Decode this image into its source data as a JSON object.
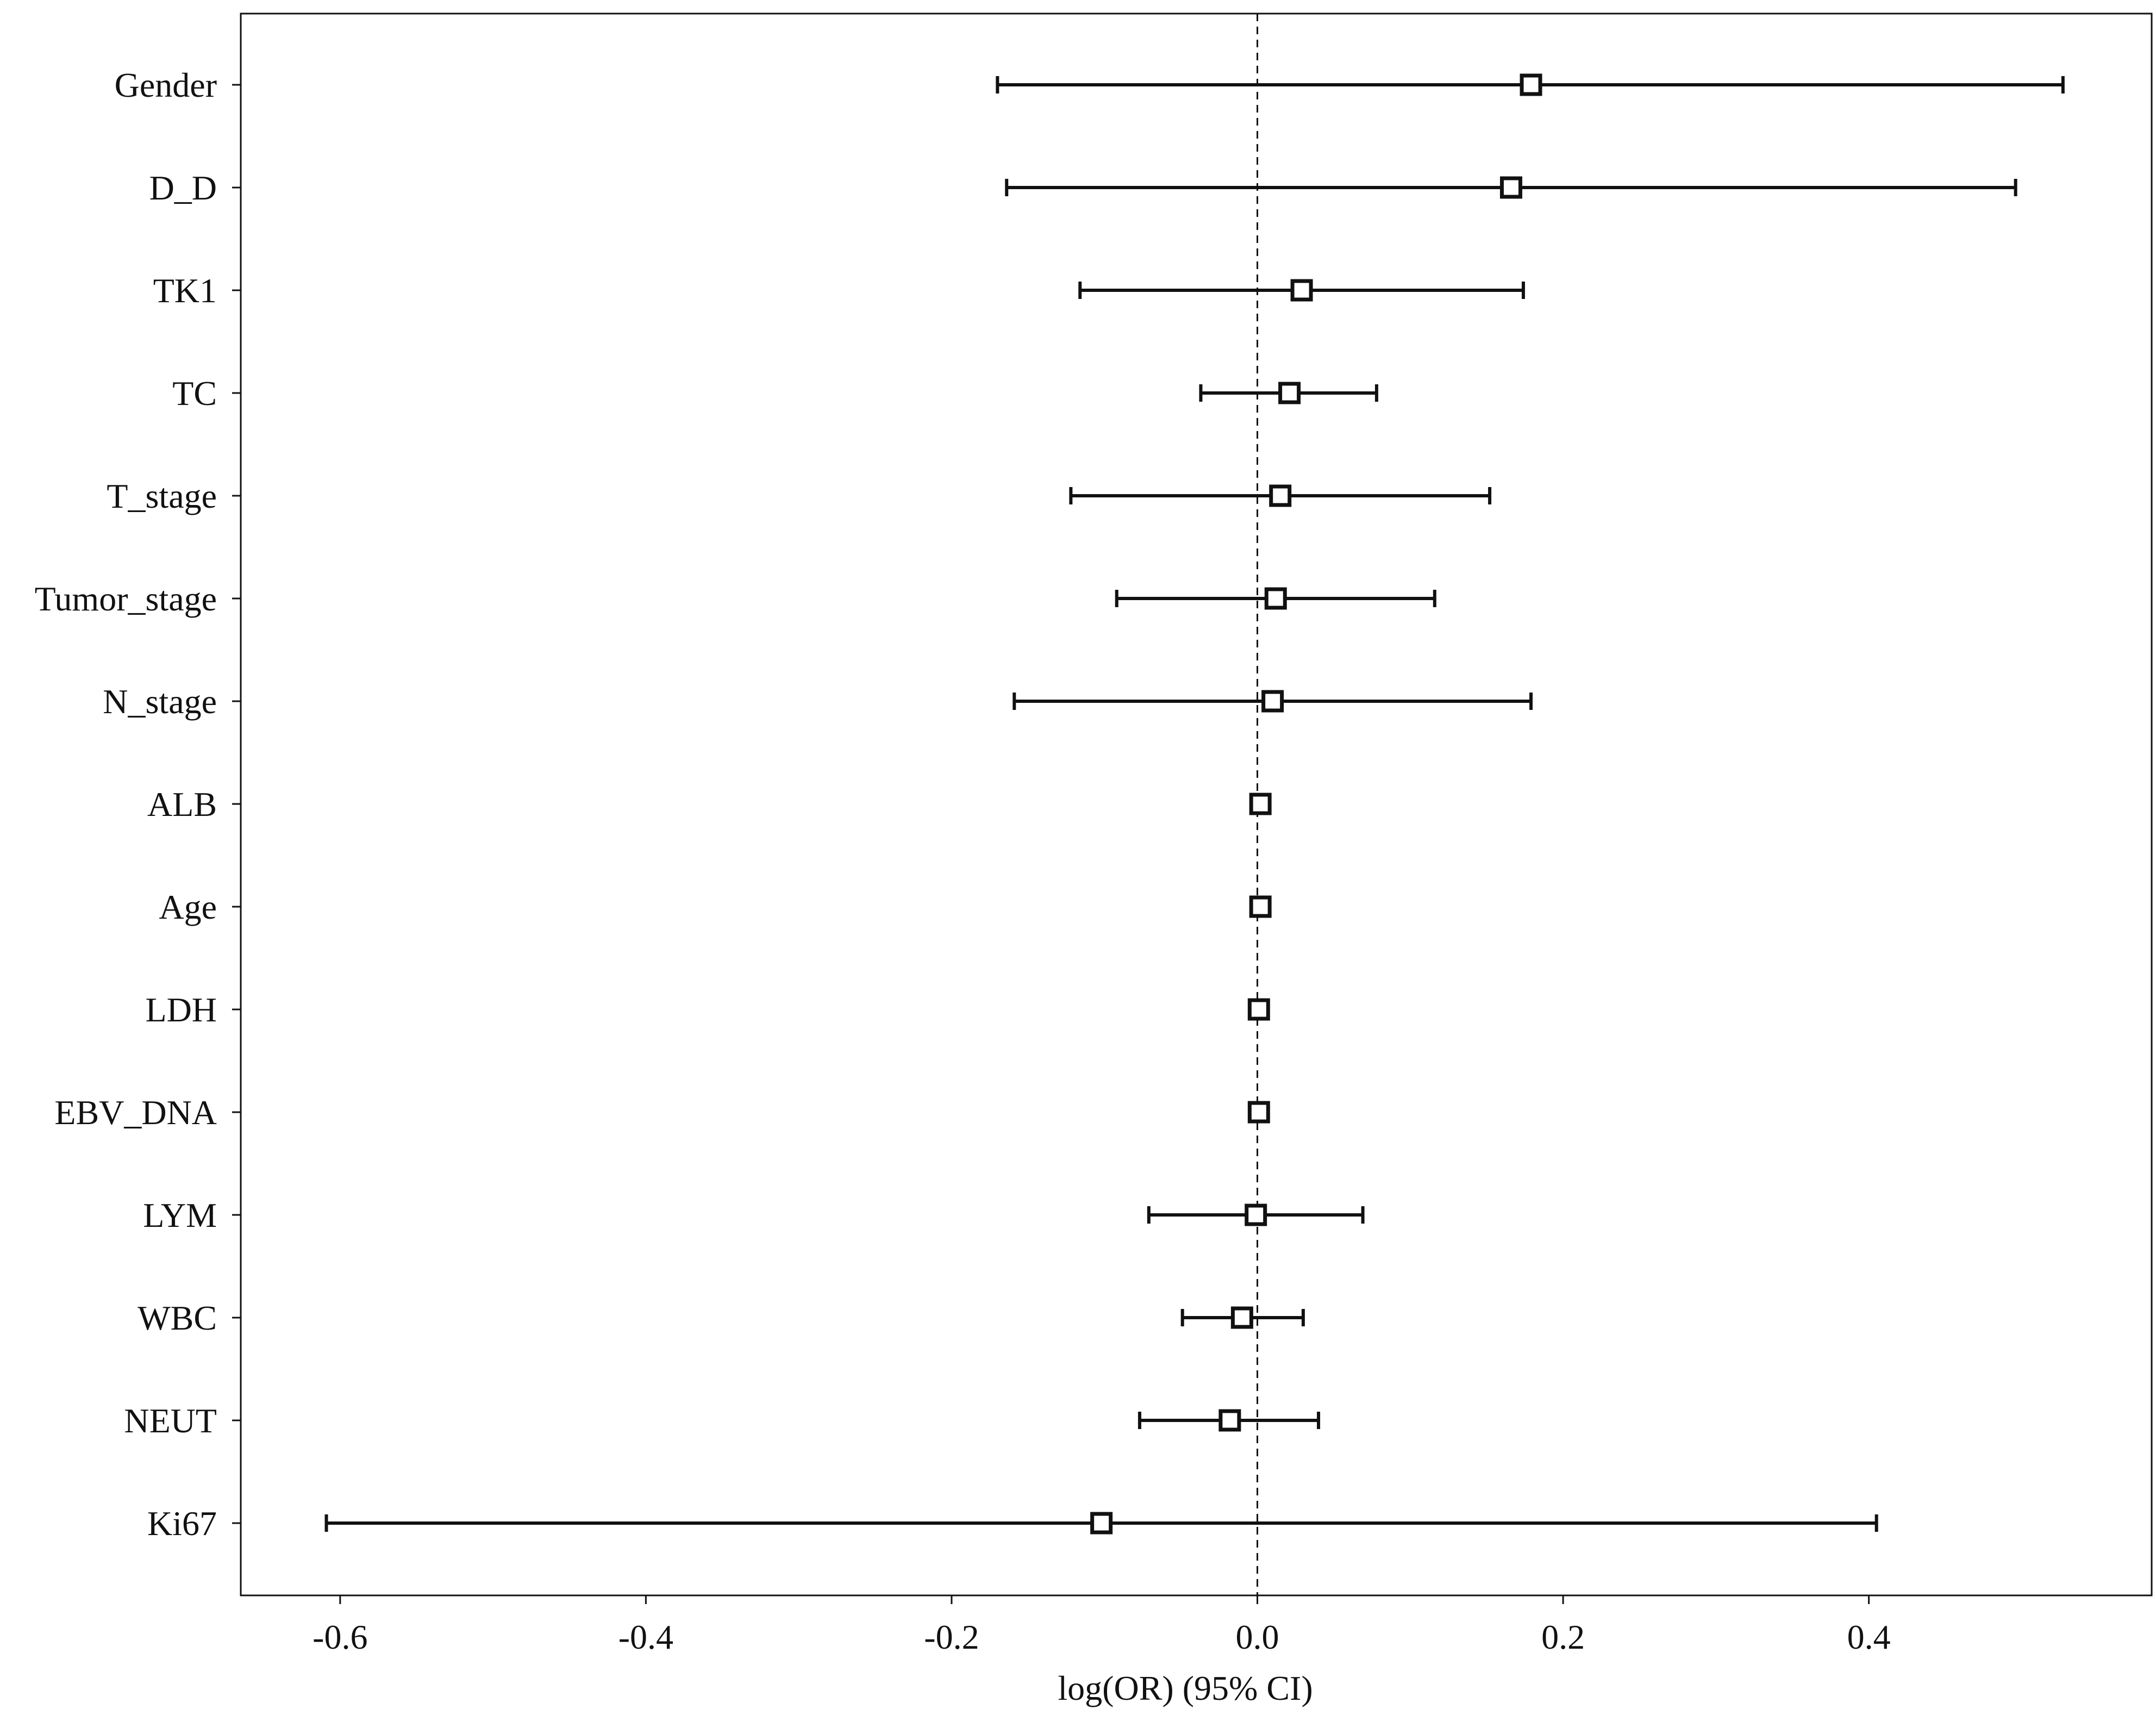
{
  "chart_data": {
    "type": "forest",
    "xlabel": "log(OR) (95% CI)",
    "xlim": [
      -0.665,
      0.585
    ],
    "xticks": [
      -0.6,
      -0.4,
      -0.2,
      0.0,
      0.2,
      0.4
    ],
    "xtick_labels": [
      "-0.6",
      "-0.4",
      "-0.2",
      "0.0",
      "0.2",
      "0.4"
    ],
    "reference_line": 0.0,
    "grid": false,
    "rows": [
      {
        "label": "Gender",
        "estimate": 0.179,
        "lower": -0.17,
        "upper": 0.527
      },
      {
        "label": "D_D",
        "estimate": 0.166,
        "lower": -0.164,
        "upper": 0.496
      },
      {
        "label": "TK1",
        "estimate": 0.029,
        "lower": -0.116,
        "upper": 0.174
      },
      {
        "label": "TC",
        "estimate": 0.021,
        "lower": -0.037,
        "upper": 0.078
      },
      {
        "label": "T_stage",
        "estimate": 0.015,
        "lower": -0.122,
        "upper": 0.152
      },
      {
        "label": "Tumor_stage",
        "estimate": 0.012,
        "lower": -0.092,
        "upper": 0.116
      },
      {
        "label": "N_stage",
        "estimate": 0.01,
        "lower": -0.159,
        "upper": 0.179
      },
      {
        "label": "ALB",
        "estimate": 0.002,
        "lower": 0.002,
        "upper": 0.002
      },
      {
        "label": "Age",
        "estimate": 0.002,
        "lower": 0.002,
        "upper": 0.002
      },
      {
        "label": "LDH",
        "estimate": 0.001,
        "lower": 0.001,
        "upper": 0.001
      },
      {
        "label": "EBV_DNA",
        "estimate": 0.001,
        "lower": 0.001,
        "upper": 0.001
      },
      {
        "label": "LYM",
        "estimate": -0.001,
        "lower": -0.071,
        "upper": 0.069
      },
      {
        "label": "WBC",
        "estimate": -0.01,
        "lower": -0.049,
        "upper": 0.03
      },
      {
        "label": "NEUT",
        "estimate": -0.018,
        "lower": -0.077,
        "upper": 0.04
      },
      {
        "label": "Ki67",
        "estimate": -0.102,
        "lower": -0.609,
        "upper": 0.405
      }
    ]
  }
}
